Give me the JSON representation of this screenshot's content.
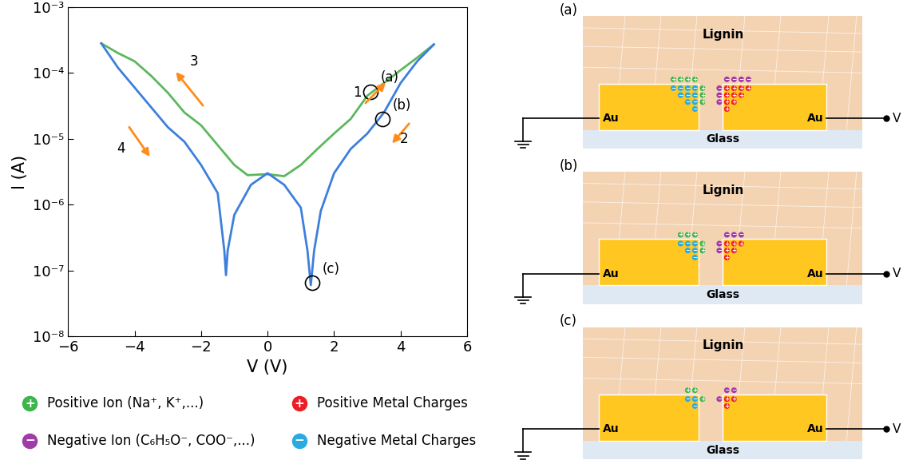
{
  "chart_data": {
    "type": "line",
    "log": "y",
    "x_label": "V (V)",
    "y_label": "I (A)",
    "xlim": [
      -6,
      6
    ],
    "xticks": [
      {
        "value": -6,
        "label": "−6"
      },
      {
        "value": -4,
        "label": "−4"
      },
      {
        "value": -2,
        "label": "−2"
      },
      0,
      2,
      4,
      6
    ],
    "ylim": [
      1e-08,
      0.001
    ],
    "yticks": [
      {
        "value": 1e-08,
        "label": "10⁻⁸"
      },
      {
        "value": 1e-07,
        "label": "10⁻⁷"
      },
      {
        "value": 1e-06,
        "label": "10⁻⁶"
      },
      {
        "value": 1e-05,
        "label": "10⁻⁵"
      },
      {
        "value": 0.0001,
        "label": "10⁻⁴"
      },
      {
        "value": 0.001,
        "label": "10⁻³"
      }
    ],
    "series": [
      {
        "color": "#5cb85c",
        "x": [
          -5,
          -4.5,
          -4,
          -3.5,
          -3,
          -2.5,
          -2,
          -1.5,
          -1,
          -0.6,
          0,
          0.5,
          1,
          1.5,
          2,
          2.5,
          3,
          3.5,
          4,
          4.5,
          5
        ],
        "values": [
          0.00028,
          0.0002,
          0.00015,
          9e-05,
          5e-05,
          2.5e-05,
          1.6e-05,
          8e-06,
          4e-06,
          2.8e-06,
          2.9e-06,
          2.7e-06,
          4e-06,
          7e-06,
          1.2e-05,
          2e-05,
          4.5e-05,
          7e-05,
          0.00011,
          0.00017,
          0.00027
        ]
      },
      {
        "color": "#3d7fdb",
        "x": [
          5,
          4.5,
          4,
          3.5,
          3,
          2.5,
          2,
          1.6,
          1.4,
          1.3,
          1.2,
          1,
          0.5,
          0,
          -0.5,
          -1,
          -1.2,
          -1.25,
          -1.3,
          -1.5,
          -2,
          -2.5,
          -3,
          -3.5,
          -4,
          -4.5,
          -5
        ],
        "values": [
          0.00027,
          0.00015,
          7e-05,
          2.5e-05,
          1.2e-05,
          7e-06,
          3e-06,
          8e-07,
          2e-07,
          6e-08,
          2e-07,
          9e-07,
          2e-06,
          3e-06,
          2e-06,
          7e-07,
          2e-07,
          8.5e-08,
          2e-07,
          1.5e-06,
          4e-06,
          9e-06,
          1.5e-05,
          3e-05,
          6e-05,
          0.00012,
          0.00028
        ]
      }
    ],
    "annotations": [
      {
        "text": "1",
        "x": 2.7,
        "y": 5e-05,
        "arrow": [
          [
            2.9,
            3.3e-05
          ],
          [
            3.6,
            7.5e-05
          ]
        ]
      },
      {
        "text": "2",
        "x": 4.1,
        "y": 1e-05,
        "arrow": [
          [
            4.3,
            1.8e-05
          ],
          [
            3.7,
            8e-06
          ]
        ]
      },
      {
        "text": "3",
        "x": -2.2,
        "y": 0.00015,
        "arrow": [
          [
            -1.9,
            3e-05
          ],
          [
            -2.8,
            0.00011
          ]
        ]
      },
      {
        "text": "4",
        "x": -4.4,
        "y": 7e-06,
        "arrow": [
          [
            -4.2,
            1.6e-05
          ],
          [
            -3.5,
            5e-06
          ]
        ]
      }
    ],
    "points": [
      {
        "text": "(a)",
        "x": 3.1,
        "y": 5.2e-05
      },
      {
        "text": "(b)",
        "x": 3.45,
        "y": 2e-05
      },
      {
        "text": "(c)",
        "x": 1.35,
        "y": 6.5e-08
      }
    ]
  },
  "diagram": {
    "panels": [
      {
        "label": "(a)",
        "material": "Lignin",
        "electrodes": [
          "Au",
          "Au"
        ],
        "substrate": "Glass",
        "terminal": "V"
      },
      {
        "label": "(b)",
        "material": "Lignin",
        "electrodes": [
          "Au",
          "Au"
        ],
        "substrate": "Glass",
        "terminal": "V"
      },
      {
        "label": "(c)",
        "material": "Lignin",
        "electrodes": [
          "Au",
          "Au"
        ],
        "substrate": "Glass",
        "terminal": "V"
      }
    ],
    "key": [
      {
        "symbol": "+",
        "text": "Positive Ion (Na⁺, K⁺,...)",
        "color": "#3cb54a"
      },
      {
        "symbol": "+",
        "text": "Positive Metal Charges",
        "color": "#ee1c24"
      },
      {
        "symbol": "−",
        "text": "Negative Ion (C₆H₅O⁻, COO⁻,...)",
        "color": "#a03ca8"
      },
      {
        "symbol": "−",
        "text": "Negative Metal Charges",
        "color": "#29abe2"
      }
    ]
  }
}
